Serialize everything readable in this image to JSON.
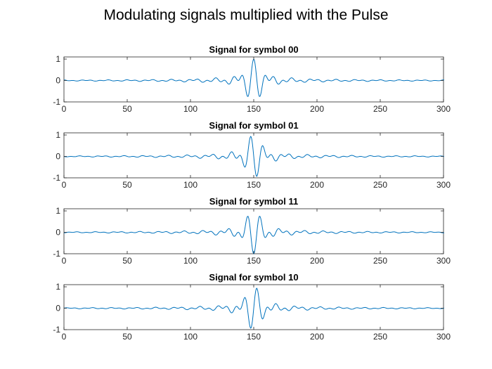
{
  "figure": {
    "title": "Modulating signals multiplied with the Pulse"
  },
  "chart_data": [
    {
      "type": "line",
      "title": "Signal for symbol 00",
      "xlabel": "",
      "ylabel": "",
      "xlim": [
        0,
        300
      ],
      "ylim": [
        -1,
        1.1
      ],
      "xticks": [
        0,
        50,
        100,
        150,
        200,
        250,
        300
      ],
      "yticks": [
        -1,
        0,
        1
      ],
      "grid": false,
      "line_color": "#0072bd",
      "signal": {
        "n": 301,
        "center": 150,
        "sinc_width": 12,
        "carrier_period": 10,
        "phase_deg": 0
      },
      "series": [
        {
          "values_peaks": [
            {
              "x": 145,
              "y": 0.9
            },
            {
              "x": 150,
              "y": -0.95
            },
            {
              "x": 155,
              "y": 1.0
            },
            {
              "x": 160,
              "y": -0.95
            }
          ]
        }
      ]
    },
    {
      "type": "line",
      "title": "Signal for symbol 01",
      "xlabel": "",
      "ylabel": "",
      "xlim": [
        0,
        300
      ],
      "ylim": [
        -1,
        1.1
      ],
      "xticks": [
        0,
        50,
        100,
        150,
        200,
        250,
        300
      ],
      "yticks": [
        -1,
        0,
        1
      ],
      "grid": false,
      "line_color": "#0072bd",
      "signal": {
        "n": 301,
        "center": 150,
        "sinc_width": 12,
        "carrier_period": 10,
        "phase_deg": 90
      },
      "series": [
        {
          "values_peaks": [
            {
              "x": 150,
              "y": 1.05
            },
            {
              "x": 145,
              "y": -0.95
            },
            {
              "x": 155,
              "y": -0.95
            }
          ]
        }
      ]
    },
    {
      "type": "line",
      "title": "Signal for symbol 11",
      "xlabel": "",
      "ylabel": "",
      "xlim": [
        0,
        300
      ],
      "ylim": [
        -1,
        1.1
      ],
      "xticks": [
        0,
        50,
        100,
        150,
        200,
        250,
        300
      ],
      "yticks": [
        -1,
        0,
        1
      ],
      "grid": false,
      "line_color": "#0072bd",
      "signal": {
        "n": 301,
        "center": 150,
        "sinc_width": 12,
        "carrier_period": 10,
        "phase_deg": 180
      },
      "series": [
        {
          "values_peaks": [
            {
              "x": 150,
              "y": 1.0
            },
            {
              "x": 145,
              "y": -0.95
            },
            {
              "x": 155,
              "y": -0.95
            }
          ]
        }
      ]
    },
    {
      "type": "line",
      "title": "Signal for symbol 10",
      "xlabel": "",
      "ylabel": "",
      "xlim": [
        0,
        300
      ],
      "ylim": [
        -1,
        1.1
      ],
      "xticks": [
        0,
        50,
        100,
        150,
        200,
        250,
        300
      ],
      "yticks": [
        -1,
        0,
        1
      ],
      "grid": false,
      "line_color": "#0072bd",
      "signal": {
        "n": 301,
        "center": 150,
        "sinc_width": 12,
        "carrier_period": 10,
        "phase_deg": 270
      },
      "series": [
        {
          "values_peaks": [
            {
              "x": 145,
              "y": 1.0
            },
            {
              "x": 150,
              "y": -1.0
            },
            {
              "x": 155,
              "y": 1.0
            }
          ]
        }
      ]
    }
  ]
}
